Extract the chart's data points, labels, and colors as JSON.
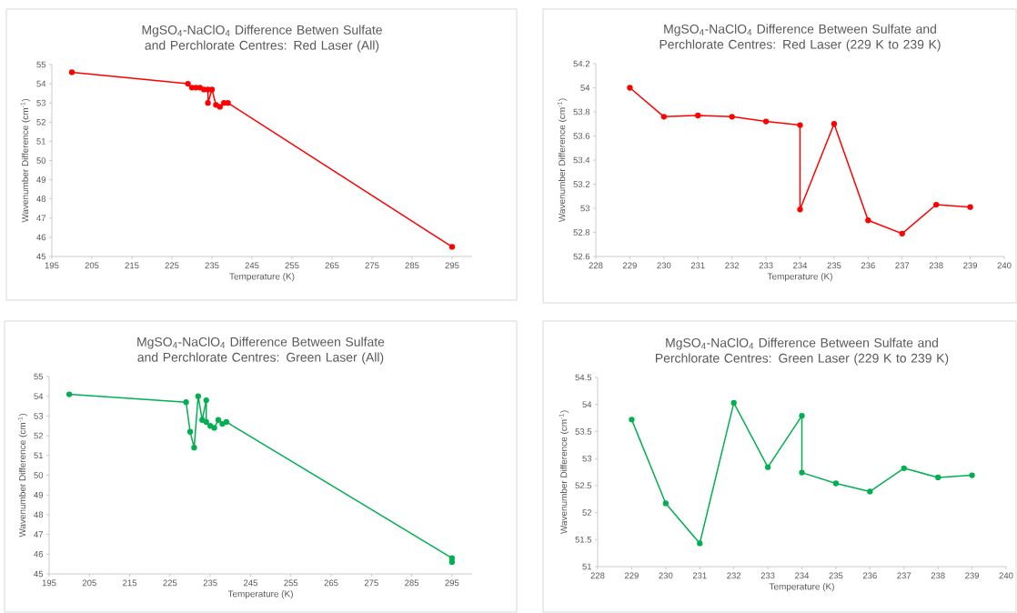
{
  "chart_data": [
    {
      "type": "line",
      "title": "MgSO$_{4}$-NaClO$_{4}$ Difference Betwen Sulfate and Perchlorate Centres: Red Laser (All)",
      "xlabel": "Temperature (K)",
      "ylabel": "Wavenumber Difference (cm$^{-1}$)",
      "marker": "circle",
      "line_style": "solid",
      "x": [
        200,
        229,
        230,
        231,
        232,
        233,
        234,
        234,
        235,
        236,
        237,
        238,
        239,
        295
      ],
      "series": [
        {
          "color": "#ff0000",
          "values": [
            54.6,
            54.0,
            53.8,
            53.8,
            53.8,
            53.7,
            53.7,
            53.0,
            53.7,
            52.9,
            52.8,
            53.0,
            53.0,
            45.5
          ]
        }
      ],
      "xlim": [
        195,
        300
      ],
      "ylim": [
        45,
        55
      ],
      "xticks": [
        195,
        205,
        215,
        225,
        235,
        245,
        255,
        265,
        275,
        285,
        295
      ],
      "yticks": [
        45,
        46,
        47,
        48,
        49,
        50,
        51,
        52,
        53,
        54,
        55
      ]
    },
    {
      "type": "line",
      "title": "MgSO$_{4}$-NaClO$_{4}$ Difference Between Sulfate and Perchlorate Centres: Red Laser (229 K to 239 K)",
      "xlabel": "Temperature (K)",
      "ylabel": "Wavenumber Difference (cm$^{-1}$)",
      "marker": "circle",
      "line_style": "solid",
      "x": [
        229,
        230,
        231,
        232,
        233,
        234,
        234,
        235,
        236,
        237,
        238,
        239
      ],
      "series": [
        {
          "color": "#ff0000",
          "values": [
            54.0,
            53.76,
            53.77,
            53.76,
            53.72,
            53.69,
            52.99,
            53.7,
            52.9,
            52.79,
            53.03,
            53.01
          ]
        }
      ],
      "xlim": [
        228,
        240
      ],
      "ylim": [
        52.6,
        54.2
      ],
      "xticks": [
        228,
        229,
        230,
        231,
        232,
        233,
        234,
        235,
        236,
        237,
        238,
        239,
        240
      ],
      "yticks": [
        52.6,
        52.8,
        53,
        53.2,
        53.4,
        53.6,
        53.8,
        54,
        54.2
      ]
    },
    {
      "type": "line",
      "title": "MgSO$_{4}$-NaClO$_{4}$ Difference Between Sulfate and Perchlorate Centres: Green Laser (All)",
      "xlabel": "Temperature (K)",
      "ylabel": "Wavenumber Difference (cm$^{-1}$)",
      "marker": "circle",
      "line_style": "solid",
      "x": [
        200,
        229,
        230,
        231,
        232,
        233,
        234,
        234,
        235,
        236,
        237,
        238,
        239,
        295,
        295
      ],
      "series": [
        {
          "color": "#00b050",
          "values": [
            54.1,
            53.7,
            52.2,
            51.4,
            54.0,
            52.8,
            53.8,
            52.7,
            52.5,
            52.4,
            52.8,
            52.6,
            52.7,
            45.8,
            45.6
          ]
        }
      ],
      "xlim": [
        195,
        300
      ],
      "ylim": [
        45,
        55
      ],
      "xticks": [
        195,
        205,
        215,
        225,
        235,
        245,
        255,
        265,
        275,
        285,
        295
      ],
      "yticks": [
        45,
        46,
        47,
        48,
        49,
        50,
        51,
        52,
        53,
        54,
        55
      ]
    },
    {
      "type": "line",
      "title": "MgSO$_{4}$-NaClO$_{4}$ Difference Between Sulfate and Perchlorate Centres: Green Laser (229 K to 239 K)",
      "xlabel": "Temperature (K)",
      "ylabel": "Wavenumber Difference (cm$^{-1}$)",
      "marker": "circle",
      "line_style": "solid",
      "x": [
        229,
        230,
        231,
        232,
        233,
        234,
        234,
        235,
        236,
        237,
        238,
        239
      ],
      "series": [
        {
          "color": "#00b050",
          "values": [
            53.72,
            52.17,
            51.43,
            54.03,
            52.84,
            53.79,
            52.74,
            52.54,
            52.39,
            52.82,
            52.65,
            52.69
          ]
        }
      ],
      "xlim": [
        228,
        240
      ],
      "ylim": [
        51,
        54.5
      ],
      "xticks": [
        228,
        229,
        230,
        231,
        232,
        233,
        234,
        235,
        236,
        237,
        238,
        239,
        240
      ],
      "yticks": [
        51,
        51.5,
        52,
        52.5,
        53,
        53.5,
        54,
        54.5
      ]
    }
  ]
}
